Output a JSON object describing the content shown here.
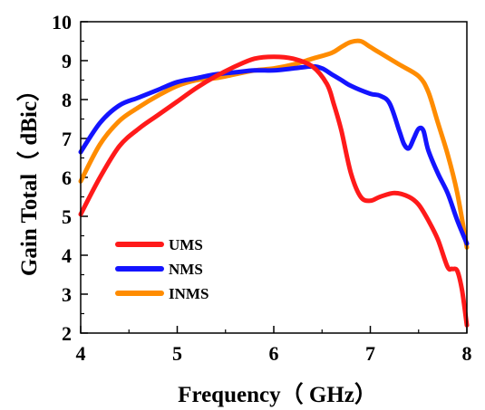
{
  "chart_data": {
    "type": "line",
    "title": "",
    "xlabel": "Frequency（ GHz）",
    "ylabel": "Gain Total（ dBic）",
    "xlim": [
      4,
      8
    ],
    "ylim": [
      2,
      10
    ],
    "xticks": [
      4,
      5,
      6,
      7,
      8
    ],
    "yticks": [
      2,
      3,
      4,
      5,
      6,
      7,
      8,
      9,
      10
    ],
    "grid": false,
    "legend_position": "bottom-left",
    "series": [
      {
        "name": "UMS",
        "color": "#ff1a1a",
        "x": [
          4.0,
          4.2,
          4.4,
          4.6,
          4.8,
          5.0,
          5.2,
          5.4,
          5.6,
          5.8,
          6.0,
          6.2,
          6.4,
          6.55,
          6.62,
          6.7,
          6.8,
          6.9,
          7.0,
          7.1,
          7.25,
          7.4,
          7.5,
          7.6,
          7.7,
          7.8,
          7.85,
          7.9,
          7.95,
          8.0
        ],
        "y": [
          5.05,
          6.0,
          6.8,
          7.25,
          7.6,
          7.95,
          8.3,
          8.6,
          8.85,
          9.05,
          9.1,
          9.05,
          8.85,
          8.4,
          7.9,
          7.2,
          6.1,
          5.5,
          5.4,
          5.5,
          5.6,
          5.5,
          5.3,
          4.9,
          4.4,
          3.7,
          3.65,
          3.6,
          3.1,
          2.2
        ]
      },
      {
        "name": "NMS",
        "color": "#1414ff",
        "x": [
          4.0,
          4.2,
          4.4,
          4.6,
          4.8,
          5.0,
          5.2,
          5.4,
          5.6,
          5.8,
          6.0,
          6.2,
          6.4,
          6.5,
          6.6,
          6.7,
          6.8,
          7.0,
          7.1,
          7.2,
          7.3,
          7.35,
          7.4,
          7.45,
          7.5,
          7.55,
          7.6,
          7.7,
          7.8,
          7.9,
          8.0
        ],
        "y": [
          6.65,
          7.4,
          7.85,
          8.05,
          8.25,
          8.45,
          8.55,
          8.65,
          8.7,
          8.75,
          8.75,
          8.8,
          8.85,
          8.8,
          8.65,
          8.5,
          8.35,
          8.15,
          8.1,
          7.9,
          7.2,
          6.85,
          6.75,
          7.0,
          7.25,
          7.2,
          6.7,
          6.1,
          5.6,
          4.9,
          4.3
        ]
      },
      {
        "name": "INMS",
        "color": "#ff8c00",
        "x": [
          4.0,
          4.2,
          4.4,
          4.6,
          4.8,
          5.0,
          5.2,
          5.4,
          5.6,
          5.8,
          6.0,
          6.2,
          6.4,
          6.6,
          6.7,
          6.8,
          6.9,
          7.0,
          7.1,
          7.3,
          7.5,
          7.6,
          7.7,
          7.8,
          7.9,
          8.0
        ],
        "y": [
          5.9,
          6.85,
          7.45,
          7.8,
          8.1,
          8.35,
          8.5,
          8.55,
          8.65,
          8.75,
          8.8,
          8.9,
          9.05,
          9.2,
          9.35,
          9.48,
          9.5,
          9.35,
          9.2,
          8.9,
          8.6,
          8.2,
          7.4,
          6.6,
          5.6,
          4.2
        ]
      }
    ]
  }
}
